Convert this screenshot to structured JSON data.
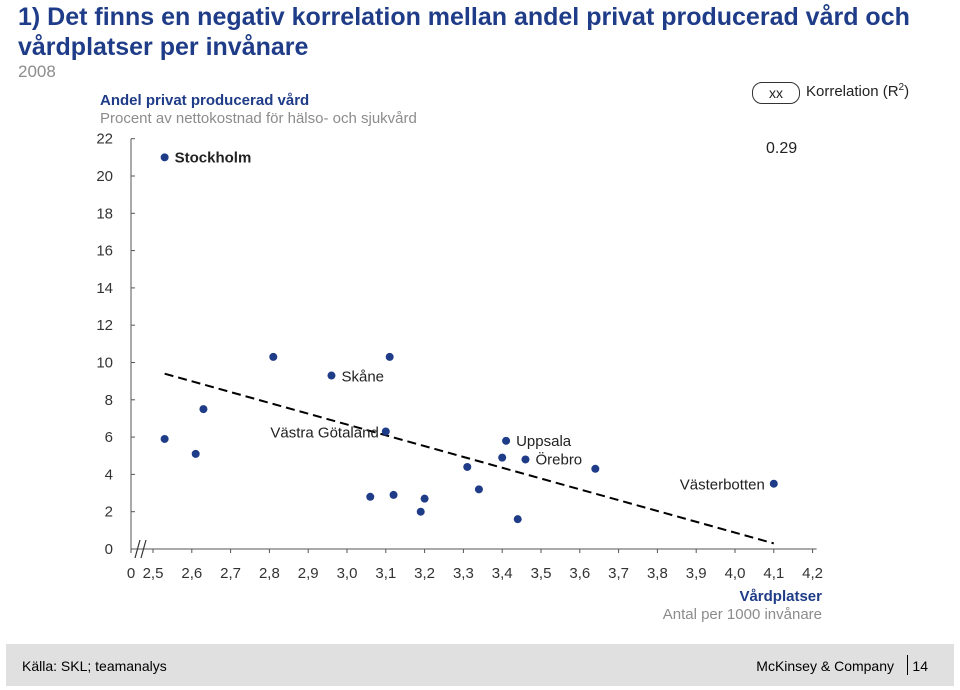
{
  "slide": {
    "title": "1) Det finns en negativ korrelation mellan andel privat producerad vård och vårdplatser per invånare",
    "year": "2008",
    "y_title": "Andel privat producerad vård",
    "y_subtitle": "Procent av nettokostnad för hälso- och sjukvård",
    "x_title": "Vårdplatser",
    "x_subtitle": "Antal per 1000 invånare",
    "legend_box": "xx",
    "legend_label": "Korrelation (R",
    "legend_sup": "2",
    "legend_close": ")",
    "r2_value": "0.29",
    "source": "Källa: SKL; teamanalys",
    "brand": "McKinsey & Company",
    "page": "14"
  },
  "colors": {
    "title": "#1f3c88",
    "point": "#1f3c88",
    "grey": "#8c8c8c",
    "footer": "#e0e0e0"
  },
  "chart_data": {
    "type": "scatter",
    "xlim": [
      2.5,
      4.2
    ],
    "ylim": [
      0,
      22
    ],
    "x_ticks": [
      "0",
      "2,5",
      "2,6",
      "2,7",
      "2,8",
      "2,9",
      "3,0",
      "3,1",
      "3,2",
      "3,3",
      "3,4",
      "3,5",
      "3,6",
      "3,7",
      "3,8",
      "3,9",
      "4,0",
      "4,1",
      "4,2"
    ],
    "y_ticks": [
      "0",
      "2",
      "4",
      "6",
      "8",
      "10",
      "12",
      "14",
      "16",
      "18",
      "20",
      "22"
    ],
    "axis_break": true,
    "grid": false,
    "points": [
      {
        "x": 2.53,
        "y": 21.0,
        "label": "Stockholm"
      },
      {
        "x": 2.53,
        "y": 5.9,
        "label": ""
      },
      {
        "x": 2.61,
        "y": 5.1,
        "label": ""
      },
      {
        "x": 2.63,
        "y": 7.5,
        "label": ""
      },
      {
        "x": 2.81,
        "y": 10.3,
        "label": ""
      },
      {
        "x": 2.96,
        "y": 9.3,
        "label": "Skåne"
      },
      {
        "x": 3.11,
        "y": 10.3,
        "label": ""
      },
      {
        "x": 3.1,
        "y": 6.3,
        "label": "Västra Götaland"
      },
      {
        "x": 3.06,
        "y": 2.8,
        "label": ""
      },
      {
        "x": 3.12,
        "y": 2.9,
        "label": ""
      },
      {
        "x": 3.2,
        "y": 2.7,
        "label": ""
      },
      {
        "x": 3.19,
        "y": 2.0,
        "label": ""
      },
      {
        "x": 3.31,
        "y": 4.4,
        "label": ""
      },
      {
        "x": 3.34,
        "y": 3.2,
        "label": ""
      },
      {
        "x": 3.4,
        "y": 4.9,
        "label": ""
      },
      {
        "x": 3.41,
        "y": 5.8,
        "label": "Uppsala"
      },
      {
        "x": 3.44,
        "y": 1.6,
        "label": ""
      },
      {
        "x": 3.46,
        "y": 4.8,
        "label": "Örebro"
      },
      {
        "x": 3.64,
        "y": 4.3,
        "label": ""
      },
      {
        "x": 4.1,
        "y": 3.5,
        "label": "Västerbotten"
      }
    ],
    "trendline": {
      "x": [
        2.53,
        4.1
      ],
      "y": [
        9.4,
        0.3
      ]
    }
  }
}
